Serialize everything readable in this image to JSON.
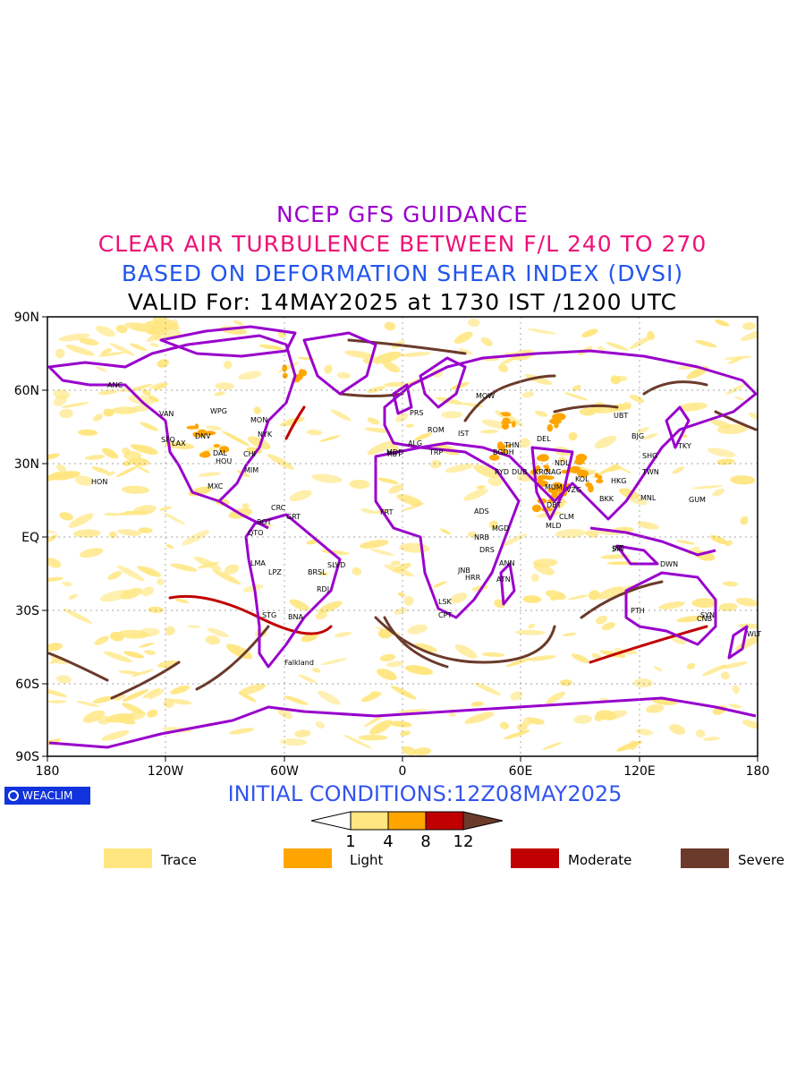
{
  "header": {
    "line1": "NCEP GFS GUIDANCE",
    "line2": "CLEAR AIR TURBULENCE BETWEEN F/L 240 TO 270",
    "line3": "BASED ON DEFORMATION SHEAR INDEX (DVSI)",
    "line4": "VALID For: 14MAY2025 at 1730 IST /1200 UTC",
    "colors": {
      "line1": "#9900cc",
      "line2": "#ee1177",
      "line3": "#2255ee",
      "line4": "#000000"
    }
  },
  "axes": {
    "lat_labels": [
      "90N",
      "60N",
      "30N",
      "EQ",
      "30S",
      "60S",
      "90S"
    ],
    "lon_labels": [
      "180",
      "120W",
      "60W",
      "0",
      "60E",
      "120E",
      "180"
    ]
  },
  "stations": [
    {
      "name": "ANC"
    },
    {
      "name": "VAN"
    },
    {
      "name": "WPG"
    },
    {
      "name": "MON"
    },
    {
      "name": "NYK"
    },
    {
      "name": "DNV"
    },
    {
      "name": "SFO"
    },
    {
      "name": "LAX"
    },
    {
      "name": "DAL"
    },
    {
      "name": "HOU"
    },
    {
      "name": "MIM"
    },
    {
      "name": "CHI"
    },
    {
      "name": "HON"
    },
    {
      "name": "MXC"
    },
    {
      "name": "GRT"
    },
    {
      "name": "CRC"
    },
    {
      "name": "BOT"
    },
    {
      "name": "QTO"
    },
    {
      "name": "LMA"
    },
    {
      "name": "LPZ"
    },
    {
      "name": "BRSL"
    },
    {
      "name": "SLVD"
    },
    {
      "name": "RDJ"
    },
    {
      "name": "STG"
    },
    {
      "name": "BNA"
    },
    {
      "name": "Falkland"
    },
    {
      "name": "MDD"
    },
    {
      "name": "PRS"
    },
    {
      "name": "ALG"
    },
    {
      "name": "TRP"
    },
    {
      "name": "ROM"
    },
    {
      "name": "IST"
    },
    {
      "name": "MOW"
    },
    {
      "name": "RYD"
    },
    {
      "name": "BGDH"
    },
    {
      "name": "DUB"
    },
    {
      "name": "KRC"
    },
    {
      "name": "THN"
    },
    {
      "name": "DEL"
    },
    {
      "name": "MUM"
    },
    {
      "name": "VZG"
    },
    {
      "name": "KOL"
    },
    {
      "name": "NDL"
    },
    {
      "name": "DBT"
    },
    {
      "name": "CLM"
    },
    {
      "name": "MLD"
    },
    {
      "name": "BKK"
    },
    {
      "name": "HKG"
    },
    {
      "name": "SHG"
    },
    {
      "name": "TWN"
    },
    {
      "name": "MNL"
    },
    {
      "name": "GUM"
    },
    {
      "name": "BJG"
    },
    {
      "name": "TKY"
    },
    {
      "name": "UBT"
    },
    {
      "name": "SIN"
    },
    {
      "name": "JKT"
    },
    {
      "name": "DWN"
    },
    {
      "name": "PTH"
    },
    {
      "name": "SYN"
    },
    {
      "name": "CNB"
    },
    {
      "name": "WLT"
    },
    {
      "name": "ADS"
    },
    {
      "name": "MGD"
    },
    {
      "name": "NRB"
    },
    {
      "name": "DRS"
    },
    {
      "name": "ANN"
    },
    {
      "name": "JNB"
    },
    {
      "name": "HRR"
    },
    {
      "name": "ATN"
    },
    {
      "name": "CPT"
    },
    {
      "name": "LSK"
    },
    {
      "name": "RBT"
    },
    {
      "name": "FRT"
    },
    {
      "name": "NAG"
    }
  ],
  "logo": {
    "text": "WEACLIM",
    "bg": "#1133dd"
  },
  "init": {
    "text": "INITIAL CONDITIONS:12Z08MAY2025",
    "color": "#3355ee"
  },
  "colorbar": {
    "ticks": [
      "1",
      "4",
      "8",
      "12"
    ],
    "colors": [
      "#ffe680",
      "#ffa500",
      "#c00000",
      "#6b3a2a"
    ]
  },
  "legend": [
    {
      "label": "Trace",
      "color": "#ffe680"
    },
    {
      "label": "Light",
      "color": "#ffa500"
    },
    {
      "label": "Moderate",
      "color": "#c00000"
    },
    {
      "label": "Severe",
      "color": "#6b3a2a"
    }
  ],
  "palette": {
    "land_outline": "#9900cc",
    "trace": "#ffe680",
    "light": "#ffa500",
    "moderate": "#c00000",
    "severe": "#6b3a2a"
  }
}
